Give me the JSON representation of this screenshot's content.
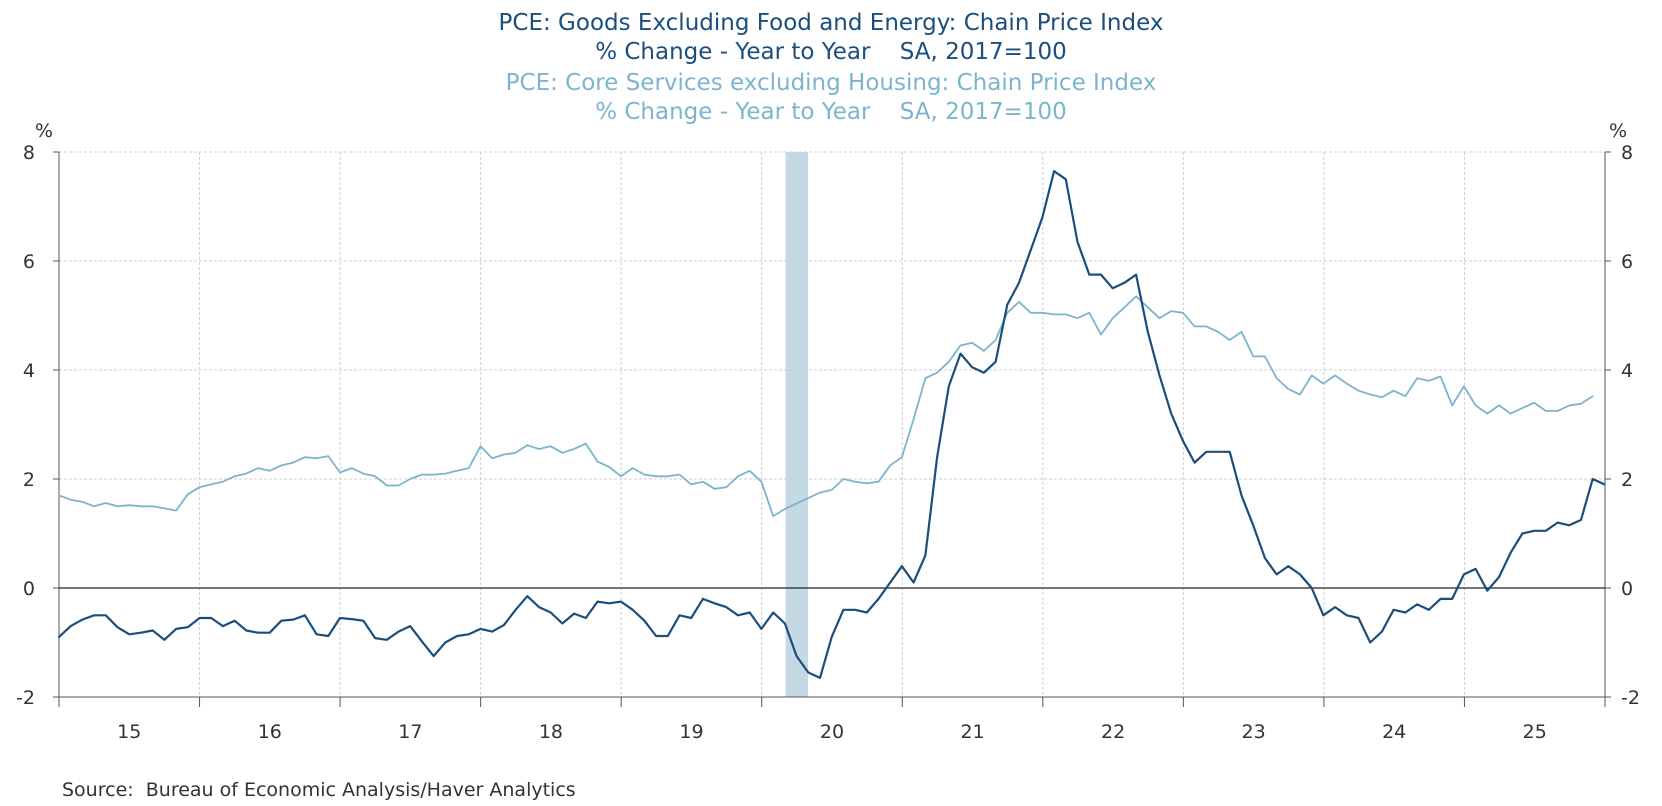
{
  "chart_data": {
    "type": "line",
    "title_lines": [
      "PCE: Goods Excluding Food and Energy: Chain Price Index",
      "% Change - Year to Year    SA, 2017=100",
      "PCE: Core Services excluding Housing: Chain Price Index",
      "% Change - Year to Year    SA, 2017=100"
    ],
    "left_unit": "%",
    "right_unit": "%",
    "ylim": [
      -2,
      8
    ],
    "yticks": [
      8,
      6,
      4,
      2,
      0,
      -2
    ],
    "xlim": [
      2015.0,
      2026.0
    ],
    "x_tick_labels": [
      "15",
      "16",
      "17",
      "18",
      "19",
      "20",
      "21",
      "22",
      "23",
      "24",
      "25"
    ],
    "grid": true,
    "recession": [
      2020.17,
      2020.33
    ],
    "source": "Source:  Bureau of Economic Analysis/Haver Analytics",
    "colors": {
      "goods": "#1b4e7c",
      "services": "#7db4cd",
      "recession": "#c5d9e5"
    },
    "series": [
      {
        "name": "PCE: Goods Excluding Food and Energy: Chain Price Index",
        "start": 2015.0,
        "step": 0.0833,
        "values": [
          -0.9,
          -0.7,
          -0.58,
          -0.5,
          -0.5,
          -0.72,
          -0.85,
          -0.82,
          -0.78,
          -0.95,
          -0.75,
          -0.72,
          -0.55,
          -0.55,
          -0.7,
          -0.6,
          -0.78,
          -0.82,
          -0.82,
          -0.6,
          -0.58,
          -0.5,
          -0.85,
          -0.88,
          -0.55,
          -0.57,
          -0.6,
          -0.92,
          -0.95,
          -0.8,
          -0.7,
          -0.98,
          -1.25,
          -1.0,
          -0.88,
          -0.85,
          -0.75,
          -0.8,
          -0.68,
          -0.4,
          -0.15,
          -0.35,
          -0.45,
          -0.65,
          -0.47,
          -0.55,
          -0.25,
          -0.28,
          -0.25,
          -0.4,
          -0.6,
          -0.88,
          -0.88,
          -0.5,
          -0.55,
          -0.2,
          -0.28,
          -0.35,
          -0.5,
          -0.45,
          -0.75,
          -0.45,
          -0.65,
          -1.25,
          -1.55,
          -1.65,
          -0.9,
          -0.4,
          -0.4,
          -0.45,
          -0.2,
          0.1,
          0.4,
          0.1,
          0.6,
          2.4,
          3.7,
          4.3,
          4.05,
          3.95,
          4.15,
          5.2,
          5.6,
          6.2,
          6.8,
          7.65,
          7.5,
          6.35,
          5.75,
          5.75,
          5.5,
          5.6,
          5.75,
          4.7,
          3.9,
          3.2,
          2.7,
          2.3,
          2.5,
          2.5,
          2.5,
          1.7,
          1.15,
          0.55,
          0.25,
          0.4,
          0.25,
          0.0,
          -0.5,
          -0.35,
          -0.5,
          -0.55,
          -1.0,
          -0.8,
          -0.4,
          -0.45,
          -0.3,
          -0.4,
          -0.2,
          -0.2,
          0.25,
          0.35,
          -0.05,
          0.2,
          0.65,
          1.0,
          1.05,
          1.05,
          1.2,
          1.15,
          1.25,
          2.0,
          1.9
        ]
      },
      {
        "name": "PCE: Core Services excluding Housing: Chain Price Index",
        "start": 2015.0,
        "step": 0.0833,
        "values": [
          1.7,
          1.62,
          1.58,
          1.5,
          1.56,
          1.5,
          1.52,
          1.5,
          1.5,
          1.46,
          1.42,
          1.72,
          1.85,
          1.9,
          1.95,
          2.05,
          2.1,
          2.2,
          2.15,
          2.25,
          2.3,
          2.4,
          2.38,
          2.42,
          2.12,
          2.2,
          2.1,
          2.05,
          1.88,
          1.88,
          2.0,
          2.08,
          2.08,
          2.1,
          2.15,
          2.2,
          2.6,
          2.38,
          2.45,
          2.48,
          2.62,
          2.55,
          2.6,
          2.48,
          2.55,
          2.65,
          2.32,
          2.22,
          2.05,
          2.2,
          2.08,
          2.05,
          2.05,
          2.08,
          1.9,
          1.95,
          1.82,
          1.85,
          2.05,
          2.15,
          1.95,
          1.32,
          1.45,
          1.55,
          1.65,
          1.75,
          1.8,
          2.0,
          1.95,
          1.92,
          1.95,
          2.25,
          2.4,
          3.1,
          3.85,
          3.95,
          4.15,
          4.45,
          4.5,
          4.35,
          4.55,
          5.05,
          5.25,
          5.05,
          5.05,
          5.02,
          5.02,
          4.95,
          5.05,
          4.65,
          4.95,
          5.15,
          5.35,
          5.15,
          4.95,
          5.08,
          5.05,
          4.8,
          4.8,
          4.7,
          4.55,
          4.7,
          4.25,
          4.25,
          3.85,
          3.65,
          3.55,
          3.9,
          3.75,
          3.9,
          3.75,
          3.62,
          3.55,
          3.5,
          3.62,
          3.52,
          3.85,
          3.8,
          3.88,
          3.35,
          3.7,
          3.35,
          3.2,
          3.35,
          3.2,
          3.3,
          3.4,
          3.25,
          3.25,
          3.35,
          3.38,
          3.52
        ]
      }
    ]
  }
}
